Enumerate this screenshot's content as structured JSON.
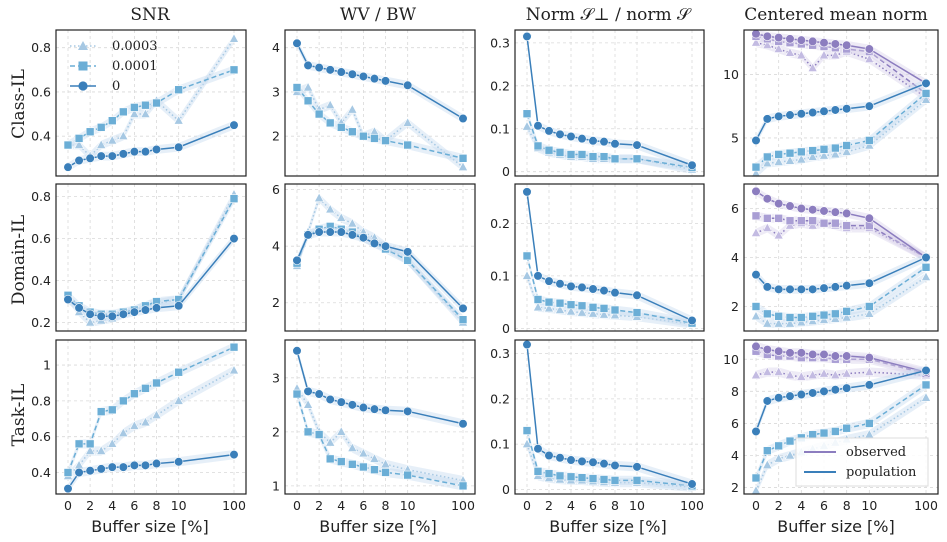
{
  "chart_data": {
    "type": "line",
    "x_label": "Buffer size [%]",
    "x_ticks": [
      0,
      2,
      4,
      6,
      8,
      10,
      100
    ],
    "x_values": [
      0,
      1,
      2,
      3,
      4,
      5,
      6,
      7,
      8,
      10,
      100
    ],
    "column_titles": [
      "SNR",
      "WV / BW",
      "Norm 𝒮⊥ / norm 𝒮",
      "Centered mean norm"
    ],
    "row_titles": [
      "Class-IL",
      "Domain-IL",
      "Task-IL"
    ],
    "legend_series": [
      "0.0003",
      "0.0001",
      "0"
    ],
    "legend_views": [
      "observed",
      "population"
    ],
    "colors": {
      "s0003": "#a6c8e3",
      "s0001": "#6baed6",
      "s0": "#3a7fba",
      "observed": "#8c7dbf",
      "band": "#c8dcef"
    },
    "panels": [
      {
        "row": "Class-IL",
        "col": "SNR",
        "ylim": [
          0.22,
          0.88
        ],
        "yticks": [
          0.4,
          0.6,
          0.8
        ],
        "series": [
          {
            "name": "0.0003",
            "values": [
              0.36,
              0.36,
              0.31,
              0.36,
              0.38,
              0.4,
              0.5,
              0.5,
              0.56,
              0.47,
              0.84
            ]
          },
          {
            "name": "0.0001",
            "values": [
              0.36,
              0.39,
              0.42,
              0.44,
              0.47,
              0.51,
              0.53,
              0.54,
              0.55,
              0.61,
              0.7
            ]
          },
          {
            "name": "0",
            "values": [
              0.26,
              0.29,
              0.3,
              0.31,
              0.31,
              0.32,
              0.33,
              0.33,
              0.34,
              0.35,
              0.45
            ]
          }
        ]
      },
      {
        "row": "Class-IL",
        "col": "WV / BW",
        "ylim": [
          1.1,
          4.4
        ],
        "yticks": [
          2,
          3,
          4
        ],
        "series": [
          {
            "name": "0.0003",
            "values": [
              3.0,
              3.1,
              2.6,
              2.7,
              2.3,
              2.6,
              2.0,
              2.1,
              1.9,
              2.3,
              1.3
            ]
          },
          {
            "name": "0.0001",
            "values": [
              3.1,
              2.8,
              2.5,
              2.3,
              2.2,
              2.1,
              2.0,
              1.95,
              1.9,
              1.8,
              1.5
            ]
          },
          {
            "name": "0",
            "values": [
              4.1,
              3.6,
              3.55,
              3.5,
              3.45,
              3.4,
              3.35,
              3.3,
              3.25,
              3.15,
              2.4
            ]
          }
        ]
      },
      {
        "row": "Class-IL",
        "col": "Norm 𝒮⊥ / norm 𝒮",
        "ylim": [
          -0.01,
          0.33
        ],
        "yticks": [
          0.0,
          0.1,
          0.2,
          0.3
        ],
        "series": [
          {
            "name": "0.0003",
            "values": [
              0.105,
              0.055,
              0.045,
              0.04,
              0.035,
              0.035,
              0.03,
              0.03,
              0.03,
              0.03,
              0.005
            ]
          },
          {
            "name": "0.0001",
            "values": [
              0.135,
              0.06,
              0.05,
              0.045,
              0.04,
              0.04,
              0.035,
              0.035,
              0.03,
              0.03,
              0.01
            ]
          },
          {
            "name": "0",
            "values": [
              0.315,
              0.107,
              0.095,
              0.087,
              0.082,
              0.077,
              0.072,
              0.07,
              0.065,
              0.062,
              0.015
            ]
          }
        ]
      },
      {
        "row": "Class-IL",
        "col": "Centered mean norm",
        "ylim": [
          2.0,
          13.5
        ],
        "yticks": [
          5,
          10
        ],
        "series": [
          {
            "name": "0.0003 observed",
            "values": [
              12.5,
              12.3,
              12.0,
              11.7,
              11.5,
              10.5,
              11.5,
              11.5,
              11.8,
              11.2,
              8.2
            ]
          },
          {
            "name": "0.0001 observed",
            "values": [
              13.0,
              12.8,
              12.6,
              12.5,
              12.4,
              12.3,
              12.2,
              12.1,
              12.0,
              11.8,
              8.5
            ]
          },
          {
            "name": "0 observed",
            "values": [
              13.2,
              13.0,
              12.9,
              12.8,
              12.7,
              12.6,
              12.5,
              12.4,
              12.3,
              12.0,
              9.3
            ]
          },
          {
            "name": "0.0003 population",
            "values": [
              2.2,
              3.0,
              3.1,
              3.2,
              3.3,
              3.5,
              3.6,
              3.7,
              3.9,
              4.4,
              8.0
            ]
          },
          {
            "name": "0.0001 population",
            "values": [
              2.7,
              3.5,
              3.7,
              3.8,
              3.9,
              4.0,
              4.1,
              4.2,
              4.4,
              4.8,
              8.5
            ]
          },
          {
            "name": "0 population",
            "values": [
              4.8,
              6.5,
              6.7,
              6.8,
              6.9,
              7.0,
              7.1,
              7.2,
              7.3,
              7.5,
              9.3
            ]
          }
        ]
      },
      {
        "row": "Domain-IL",
        "col": "SNR",
        "ylim": [
          0.16,
          0.86
        ],
        "yticks": [
          0.2,
          0.4,
          0.6,
          0.8
        ],
        "series": [
          {
            "name": "0.0003",
            "values": [
              0.32,
              0.25,
              0.2,
              0.21,
              0.22,
              0.24,
              0.26,
              0.28,
              0.29,
              0.31,
              0.81
            ]
          },
          {
            "name": "0.0001",
            "values": [
              0.33,
              0.28,
              0.25,
              0.24,
              0.24,
              0.25,
              0.26,
              0.28,
              0.3,
              0.31,
              0.79
            ]
          },
          {
            "name": "0",
            "values": [
              0.31,
              0.27,
              0.24,
              0.23,
              0.23,
              0.24,
              0.25,
              0.26,
              0.27,
              0.28,
              0.6
            ]
          }
        ]
      },
      {
        "row": "Domain-IL",
        "col": "WV / BW",
        "ylim": [
          1.0,
          6.2
        ],
        "yticks": [
          2,
          4,
          6
        ],
        "series": [
          {
            "name": "0.0003",
            "values": [
              3.3,
              4.5,
              5.7,
              5.3,
              5.0,
              4.8,
              4.5,
              4.3,
              4.0,
              3.5,
              1.3
            ]
          },
          {
            "name": "0.0001",
            "values": [
              3.4,
              4.4,
              4.6,
              4.7,
              4.6,
              4.5,
              4.3,
              4.1,
              3.9,
              3.5,
              1.4
            ]
          },
          {
            "name": "0",
            "values": [
              3.5,
              4.4,
              4.5,
              4.5,
              4.5,
              4.4,
              4.3,
              4.1,
              4.0,
              3.8,
              1.8
            ]
          }
        ]
      },
      {
        "row": "Domain-IL",
        "col": "Norm 𝒮⊥ / norm 𝒮",
        "ylim": [
          -0.005,
          0.275
        ],
        "yticks": [
          0.0,
          0.1,
          0.2
        ],
        "series": [
          {
            "name": "0.0003",
            "values": [
              0.1,
              0.04,
              0.038,
              0.035,
              0.032,
              0.03,
              0.028,
              0.026,
              0.025,
              0.022,
              0.008
            ]
          },
          {
            "name": "0.0001",
            "values": [
              0.138,
              0.055,
              0.05,
              0.048,
              0.045,
              0.043,
              0.04,
              0.038,
              0.035,
              0.03,
              0.01
            ]
          },
          {
            "name": "0",
            "values": [
              0.26,
              0.1,
              0.09,
              0.085,
              0.08,
              0.078,
              0.075,
              0.072,
              0.068,
              0.063,
              0.015
            ]
          }
        ]
      },
      {
        "row": "Domain-IL",
        "col": "Centered mean norm",
        "ylim": [
          1.0,
          7.0
        ],
        "yticks": [
          2,
          4,
          6
        ],
        "series": [
          {
            "name": "0.0003 observed",
            "values": [
              5.0,
              5.2,
              4.9,
              5.3,
              5.4,
              5.3,
              5.4,
              5.3,
              5.2,
              5.2,
              4.0
            ]
          },
          {
            "name": "0.0001 observed",
            "values": [
              5.7,
              5.6,
              5.6,
              5.5,
              5.5,
              5.5,
              5.4,
              5.4,
              5.3,
              5.3,
              4.0
            ]
          },
          {
            "name": "0 observed",
            "values": [
              6.7,
              6.4,
              6.2,
              6.1,
              6.0,
              5.95,
              5.9,
              5.85,
              5.8,
              5.6,
              4.0
            ]
          },
          {
            "name": "0.0003 population",
            "values": [
              1.6,
              1.3,
              1.3,
              1.3,
              1.35,
              1.4,
              1.45,
              1.5,
              1.55,
              1.7,
              3.2
            ]
          },
          {
            "name": "0.0001 population",
            "values": [
              2.0,
              1.7,
              1.6,
              1.55,
              1.55,
              1.6,
              1.65,
              1.7,
              1.8,
              2.0,
              3.6
            ]
          },
          {
            "name": "0 population",
            "values": [
              3.3,
              2.8,
              2.7,
              2.7,
              2.7,
              2.7,
              2.75,
              2.8,
              2.85,
              2.95,
              4.0
            ]
          }
        ]
      },
      {
        "row": "Task-IL",
        "col": "SNR",
        "ylim": [
          0.28,
          1.14
        ],
        "yticks": [
          0.4,
          0.6,
          0.8,
          1.0
        ],
        "series": [
          {
            "name": "0.0003",
            "values": [
              0.38,
              0.44,
              0.52,
              0.52,
              0.56,
              0.62,
              0.66,
              0.68,
              0.72,
              0.8,
              0.97
            ]
          },
          {
            "name": "0.0001",
            "values": [
              0.4,
              0.56,
              0.56,
              0.74,
              0.75,
              0.8,
              0.84,
              0.87,
              0.9,
              0.96,
              1.1
            ]
          },
          {
            "name": "0",
            "values": [
              0.31,
              0.4,
              0.41,
              0.42,
              0.43,
              0.43,
              0.44,
              0.44,
              0.45,
              0.46,
              0.5
            ]
          }
        ]
      },
      {
        "row": "Task-IL",
        "col": "WV / BW",
        "ylim": [
          0.85,
          3.7
        ],
        "yticks": [
          1,
          2,
          3
        ],
        "series": [
          {
            "name": "0.0003",
            "values": [
              2.8,
              2.5,
              2.0,
              1.8,
              2.0,
              1.7,
              1.6,
              1.5,
              1.4,
              1.3,
              1.1
            ]
          },
          {
            "name": "0.0001",
            "values": [
              2.7,
              2.0,
              1.95,
              1.5,
              1.45,
              1.4,
              1.35,
              1.3,
              1.25,
              1.2,
              1.0
            ]
          },
          {
            "name": "0",
            "values": [
              3.5,
              2.75,
              2.7,
              2.6,
              2.55,
              2.5,
              2.45,
              2.42,
              2.4,
              2.38,
              2.15
            ]
          }
        ]
      },
      {
        "row": "Task-IL",
        "col": "Norm 𝒮⊥ / norm 𝒮",
        "ylim": [
          -0.01,
          0.33
        ],
        "yticks": [
          0.0,
          0.1,
          0.2,
          0.3
        ],
        "series": [
          {
            "name": "0.0003",
            "values": [
              0.1,
              0.03,
              0.025,
              0.022,
              0.02,
              0.02,
              0.018,
              0.016,
              0.015,
              0.015,
              0.005
            ]
          },
          {
            "name": "0.0001",
            "values": [
              0.13,
              0.04,
              0.035,
              0.03,
              0.028,
              0.026,
              0.024,
              0.022,
              0.02,
              0.02,
              0.008
            ]
          },
          {
            "name": "0",
            "values": [
              0.32,
              0.09,
              0.075,
              0.07,
              0.065,
              0.062,
              0.06,
              0.057,
              0.053,
              0.05,
              0.012
            ]
          }
        ]
      },
      {
        "row": "Task-IL",
        "col": "Centered mean norm",
        "ylim": [
          1.6,
          11.2
        ],
        "yticks": [
          2,
          4,
          6,
          8,
          10
        ],
        "series": [
          {
            "name": "0.0003 observed",
            "values": [
              9.0,
              9.2,
              9.2,
              9.0,
              8.9,
              9.0,
              9.1,
              9.0,
              9.1,
              9.2,
              9.0
            ]
          },
          {
            "name": "0.0001 observed",
            "values": [
              10.5,
              10.3,
              10.2,
              10.2,
              10.1,
              10.1,
              10.1,
              10.0,
              10.0,
              10.0,
              9.1
            ]
          },
          {
            "name": "0 observed",
            "values": [
              10.8,
              10.6,
              10.5,
              10.4,
              10.4,
              10.3,
              10.3,
              10.2,
              10.2,
              10.1,
              9.2
            ]
          },
          {
            "name": "0.0003 population",
            "values": [
              1.8,
              3.4,
              3.8,
              4.0,
              4.2,
              4.4,
              4.6,
              4.8,
              5.0,
              5.3,
              7.6
            ]
          },
          {
            "name": "0.0001 population",
            "values": [
              2.6,
              4.3,
              4.6,
              4.9,
              5.1,
              5.3,
              5.4,
              5.5,
              5.7,
              6.0,
              8.4
            ]
          },
          {
            "name": "0 population",
            "values": [
              5.5,
              7.4,
              7.6,
              7.7,
              7.8,
              7.9,
              8.0,
              8.1,
              8.2,
              8.4,
              9.3
            ]
          }
        ]
      }
    ]
  }
}
